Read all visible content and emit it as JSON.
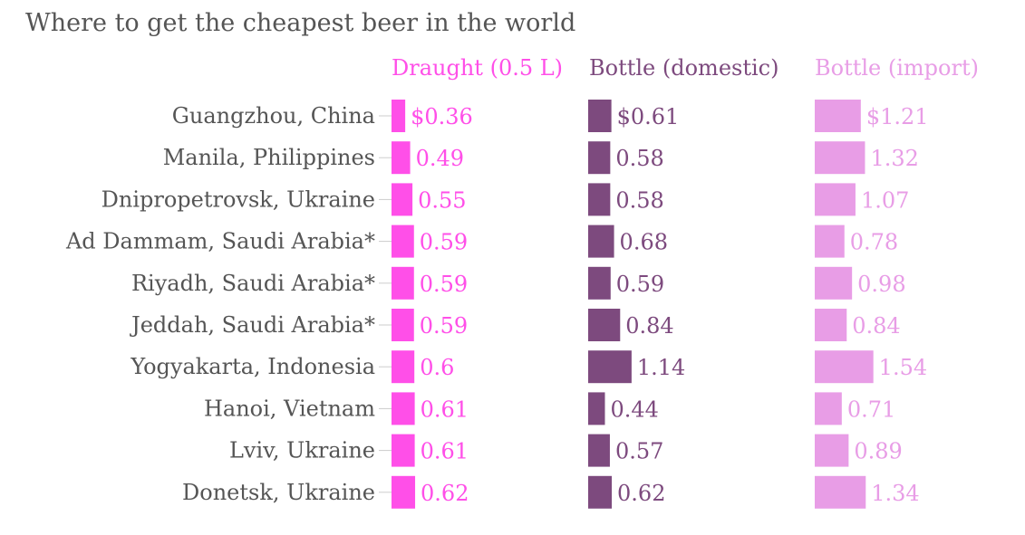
{
  "chart_data": {
    "type": "bar",
    "title": "Where to get the cheapest beer in the world",
    "categories": [
      "Guangzhou, China",
      "Manila, Philippines",
      "Dnipropetrovsk, Ukraine",
      "Ad Dammam, Saudi Arabia*",
      "Riyadh, Saudi Arabia*",
      "Jeddah, Saudi Arabia*",
      "Yogyakarta, Indonesia",
      "Hanoi, Vietnam",
      "Lviv, Ukraine",
      "Donetsk, Ukraine"
    ],
    "series": [
      {
        "name": "Draught (0.5 L)",
        "color": "#ff4fe8",
        "values": [
          0.36,
          0.49,
          0.55,
          0.59,
          0.59,
          0.59,
          0.6,
          0.61,
          0.61,
          0.62
        ],
        "labels": [
          "$0.36",
          "0.49",
          "0.55",
          "0.59",
          "0.59",
          "0.59",
          "0.6",
          "0.61",
          "0.61",
          "0.62"
        ]
      },
      {
        "name": "Bottle (domestic)",
        "color": "#7d4a7e",
        "values": [
          0.61,
          0.58,
          0.58,
          0.68,
          0.59,
          0.84,
          1.14,
          0.44,
          0.57,
          0.62
        ],
        "labels": [
          "$0.61",
          "0.58",
          "0.58",
          "0.68",
          "0.59",
          "0.84",
          "1.14",
          "0.44",
          "0.57",
          "0.62"
        ]
      },
      {
        "name": "Bottle (import)",
        "color": "#e89de6",
        "values": [
          1.21,
          1.32,
          1.07,
          0.78,
          0.98,
          0.84,
          1.54,
          0.71,
          0.89,
          1.34
        ],
        "labels": [
          "$1.21",
          "1.32",
          "1.07",
          "0.78",
          "0.98",
          "0.84",
          "1.54",
          "0.71",
          "0.89",
          "1.34"
        ]
      }
    ],
    "legend": "top",
    "grid": false
  }
}
